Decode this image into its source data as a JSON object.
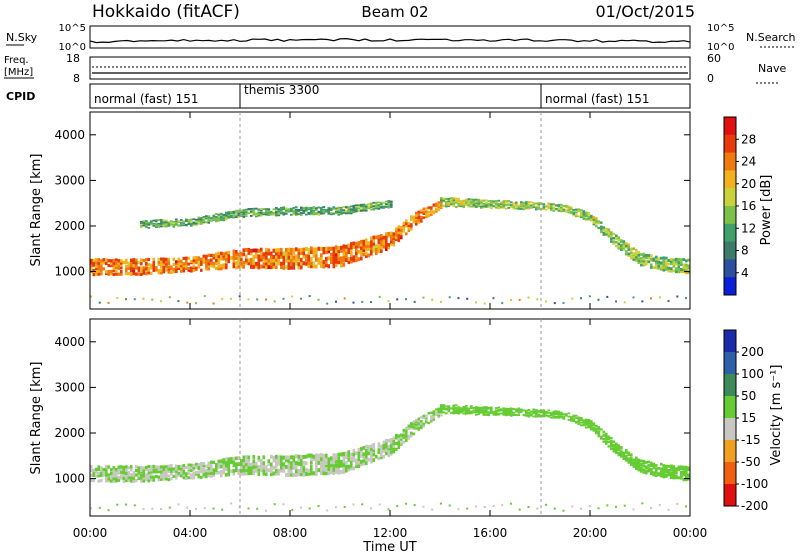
{
  "header": {
    "station": "Hokkaido (fitACF)",
    "beam": "Beam 02",
    "date": "01/Oct/2015"
  },
  "noise_panel": {
    "left_label": "N.Sky",
    "left_ticks": [
      "10^5",
      "10^0"
    ],
    "right_ticks": [
      "10^5",
      "10^0"
    ],
    "right_label": "N.Search"
  },
  "freq_panel": {
    "left_label_1": "Freq.",
    "left_label_2": "[MHz]",
    "left_ticks": [
      "18",
      "8"
    ],
    "right_ticks": [
      "60",
      "0"
    ],
    "right_label": "Nave"
  },
  "cpid_panel": {
    "label": "CPID",
    "segments": [
      {
        "label": "normal (fast) 151",
        "start_hour": 0,
        "end_hour": 6
      },
      {
        "label": "themis 3300",
        "start_hour": 6,
        "end_hour": 18
      },
      {
        "label": "normal (fast) 151",
        "start_hour": 18,
        "end_hour": 24
      }
    ]
  },
  "x_axis": {
    "label": "Time UT",
    "ticks": [
      "00:00",
      "04:00",
      "08:00",
      "12:00",
      "16:00",
      "20:00",
      "00:00"
    ]
  },
  "chart_data": [
    {
      "type": "heatmap",
      "title": "",
      "xlabel": "Time UT",
      "ylabel": "Slant Range [km]",
      "x_range_hours": [
        0,
        24
      ],
      "ylim": [
        180,
        4500
      ],
      "y_ticks": [
        "1000",
        "2000",
        "3000",
        "4000"
      ],
      "colorbar": {
        "label": "Power [dB]",
        "range": [
          0,
          32
        ],
        "ticks": [
          "4",
          "8",
          "12",
          "16",
          "20",
          "24",
          "28"
        ],
        "colors": [
          "#0b1fd9",
          "#2e4fa0",
          "#3c7a6a",
          "#3fa06a",
          "#7cc24a",
          "#c8d23a",
          "#f0b21e",
          "#f07a10",
          "#e83a0a",
          "#e01010"
        ]
      },
      "echo_bands": [
        {
          "name": "main",
          "t": [
            0,
            2,
            4,
            6,
            8,
            10,
            12,
            13,
            14
          ],
          "center": [
            1150,
            1150,
            1200,
            1350,
            1350,
            1400,
            1750,
            2200,
            2500
          ],
          "width": [
            360,
            350,
            320,
            420,
            460,
            460,
            380,
            280,
            200
          ],
          "power": 24
        },
        {
          "name": "late",
          "t": [
            14,
            16,
            18,
            19,
            20,
            21,
            22,
            23,
            24
          ],
          "center": [
            2550,
            2500,
            2450,
            2400,
            2200,
            1700,
            1300,
            1200,
            1150
          ],
          "width": [
            200,
            180,
            160,
            160,
            200,
            260,
            280,
            300,
            320
          ],
          "power": 15
        },
        {
          "name": "upper",
          "t": [
            2,
            4,
            6,
            8,
            10,
            12
          ],
          "center": [
            2050,
            2100,
            2300,
            2350,
            2350,
            2500
          ],
          "width": [
            160,
            160,
            170,
            180,
            170,
            150
          ],
          "power": 12
        }
      ]
    },
    {
      "type": "heatmap",
      "title": "",
      "xlabel": "Time UT",
      "ylabel": "Slant Range [km]",
      "x_range_hours": [
        0,
        24
      ],
      "ylim": [
        180,
        4500
      ],
      "y_ticks": [
        "1000",
        "2000",
        "3000",
        "4000"
      ],
      "colorbar": {
        "label": "Velocity [m s⁻¹]",
        "range": [
          -250,
          250
        ],
        "ticks": [
          "200",
          "100",
          "50",
          "15",
          "-15",
          "-50",
          "-100",
          "-200"
        ],
        "colors": [
          "#1a2aa8",
          "#2f5fa8",
          "#3c8a5a",
          "#66cc33",
          "#c8c8c0",
          "#f0a020",
          "#f06010",
          "#e01010"
        ]
      },
      "echo_bands": [
        {
          "name": "main",
          "t": [
            0,
            2,
            4,
            6,
            8,
            10,
            12,
            13,
            14
          ],
          "center": [
            1150,
            1150,
            1200,
            1350,
            1350,
            1400,
            1750,
            2200,
            2500
          ],
          "width": [
            360,
            350,
            320,
            420,
            460,
            460,
            380,
            280,
            200
          ],
          "velocity": 0
        },
        {
          "name": "late",
          "t": [
            14,
            16,
            18,
            19,
            20,
            21,
            22,
            23,
            24
          ],
          "center": [
            2550,
            2500,
            2450,
            2400,
            2200,
            1700,
            1300,
            1200,
            1150
          ],
          "width": [
            200,
            180,
            160,
            160,
            200,
            260,
            280,
            300,
            320
          ],
          "velocity": 40
        }
      ]
    }
  ]
}
